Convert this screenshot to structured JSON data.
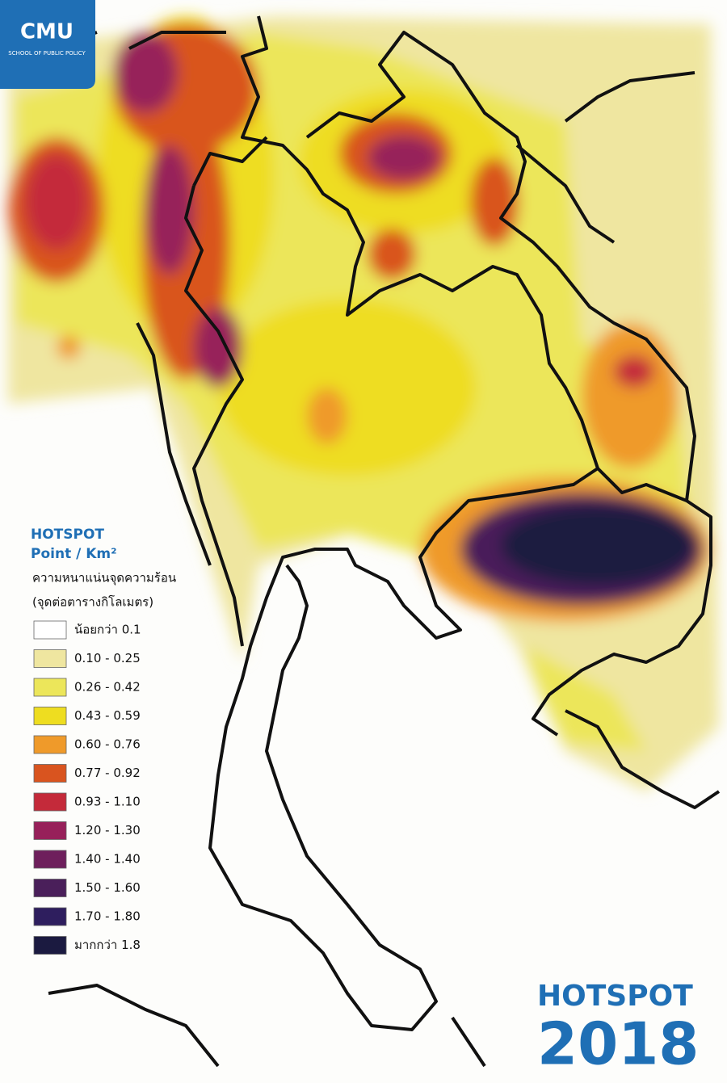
{
  "logo": {
    "title": "CMU",
    "subtitle": "SCHOOL OF PUBLIC POLICY"
  },
  "legend": {
    "title": "HOTSPOT",
    "unit": "Point / Km²",
    "caption_line1": "ความหนาแน่นจุดความร้อน",
    "caption_line2": "(จุดต่อตารางกิโลเมตร)",
    "items": [
      {
        "label": "น้อยกว่า 0.1",
        "color": "#ffffff"
      },
      {
        "label": "0.10 - 0.25",
        "color": "#efe6a0"
      },
      {
        "label": "0.26 - 0.42",
        "color": "#ece65a"
      },
      {
        "label": "0.43 - 0.59",
        "color": "#eedd20"
      },
      {
        "label": "0.60 - 0.76",
        "color": "#ef9a2a"
      },
      {
        "label": "0.77 - 0.92",
        "color": "#d9541f"
      },
      {
        "label": "0.93 - 1.10",
        "color": "#c42a3a"
      },
      {
        "label": "1.20 - 1.30",
        "color": "#97205a"
      },
      {
        "label": "1.40 - 1.40",
        "color": "#6e1f5c"
      },
      {
        "label": "1.50 - 1.60",
        "color": "#4a1f5a"
      },
      {
        "label": "1.70 - 1.80",
        "color": "#2e1e5e"
      },
      {
        "label": "มากกว่า 1.8",
        "color": "#1b1a40"
      }
    ]
  },
  "footer": {
    "title": "HOTSPOT",
    "year": "2018"
  }
}
